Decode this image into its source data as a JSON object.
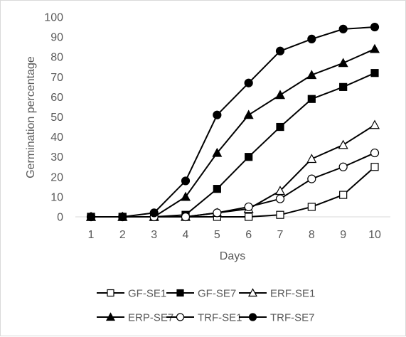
{
  "chart_data": {
    "type": "line",
    "title": "",
    "xlabel": "Days",
    "ylabel": "Germination percentage",
    "x": [
      1,
      2,
      3,
      4,
      5,
      6,
      7,
      8,
      9,
      10
    ],
    "xlim": [
      1,
      10
    ],
    "ylim": [
      0,
      100
    ],
    "yticks": [
      0,
      10,
      20,
      30,
      40,
      50,
      60,
      70,
      80,
      90,
      100
    ],
    "grid": false,
    "legend_position": "bottom",
    "series": [
      {
        "name": "GF-SE1",
        "marker": "square-open",
        "values": [
          0,
          0,
          0,
          0,
          0,
          0,
          1,
          5,
          11,
          25
        ]
      },
      {
        "name": "GF-SE7",
        "marker": "square-filled",
        "values": [
          0,
          0,
          0,
          1,
          14,
          30,
          45,
          59,
          65,
          72
        ]
      },
      {
        "name": "ERF-SE1",
        "marker": "triangle-open",
        "values": [
          0,
          0,
          0,
          0,
          2,
          4,
          13,
          29,
          36,
          46
        ]
      },
      {
        "name": "ERP-SE7",
        "marker": "triangle-filled",
        "values": [
          0,
          0,
          0,
          10,
          32,
          51,
          61,
          71,
          77,
          84
        ]
      },
      {
        "name": "TRF-SE1",
        "marker": "circle-open",
        "values": [
          0,
          0,
          0,
          0,
          2,
          5,
          9,
          19,
          25,
          32
        ]
      },
      {
        "name": "TRF-SE7",
        "marker": "circle-filled",
        "values": [
          0,
          0,
          2,
          18,
          51,
          67,
          83,
          89,
          94,
          95
        ]
      }
    ]
  },
  "colors": {
    "line": "#000000",
    "axis": "#d9d9d9",
    "text": "#595959",
    "background": "#ffffff"
  }
}
